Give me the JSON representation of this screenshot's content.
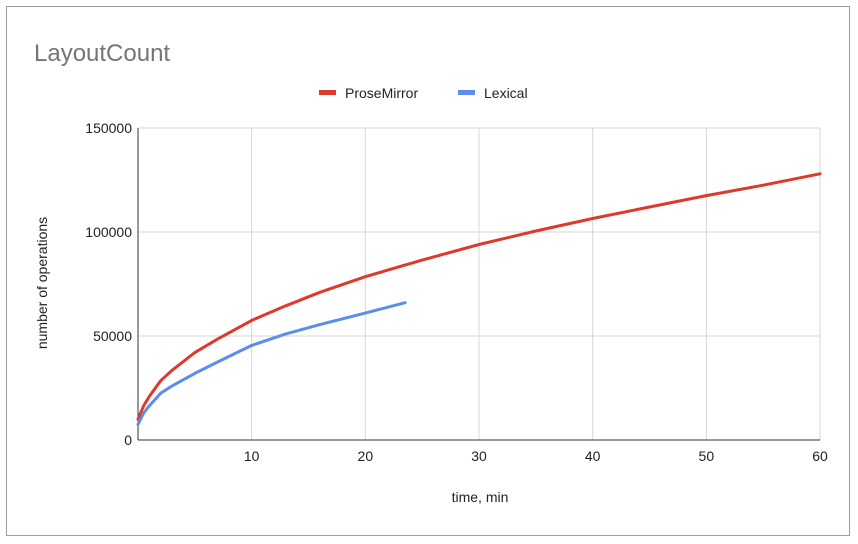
{
  "chart_data": {
    "type": "line",
    "title": "LayoutCount",
    "xlabel": "time, min",
    "ylabel": "number of operations",
    "xlim": [
      0,
      60
    ],
    "ylim": [
      0,
      150000
    ],
    "x_ticks": [
      10,
      20,
      30,
      40,
      50,
      60
    ],
    "y_ticks": [
      0,
      50000,
      100000,
      150000
    ],
    "grid": true,
    "legend_position": "top-center",
    "series": [
      {
        "name": "ProseMirror",
        "color": "#dc3a2c",
        "x": [
          0,
          0.5,
          1,
          2,
          3,
          5,
          7,
          10,
          13,
          16,
          20,
          25,
          30,
          35,
          40,
          45,
          50,
          55,
          60
        ],
        "y": [
          10000,
          16500,
          21000,
          28500,
          33500,
          42000,
          48500,
          57500,
          64500,
          71000,
          78500,
          86500,
          94000,
          100500,
          106500,
          112000,
          117500,
          122500,
          128000
        ]
      },
      {
        "name": "Lexical",
        "color": "#5b8def",
        "x": [
          0,
          0.5,
          1,
          2,
          3,
          5,
          7,
          10,
          13,
          16,
          20,
          23.5
        ],
        "y": [
          7500,
          13000,
          16500,
          22500,
          26000,
          32000,
          37500,
          45500,
          51000,
          55500,
          61000,
          66000
        ]
      }
    ]
  }
}
